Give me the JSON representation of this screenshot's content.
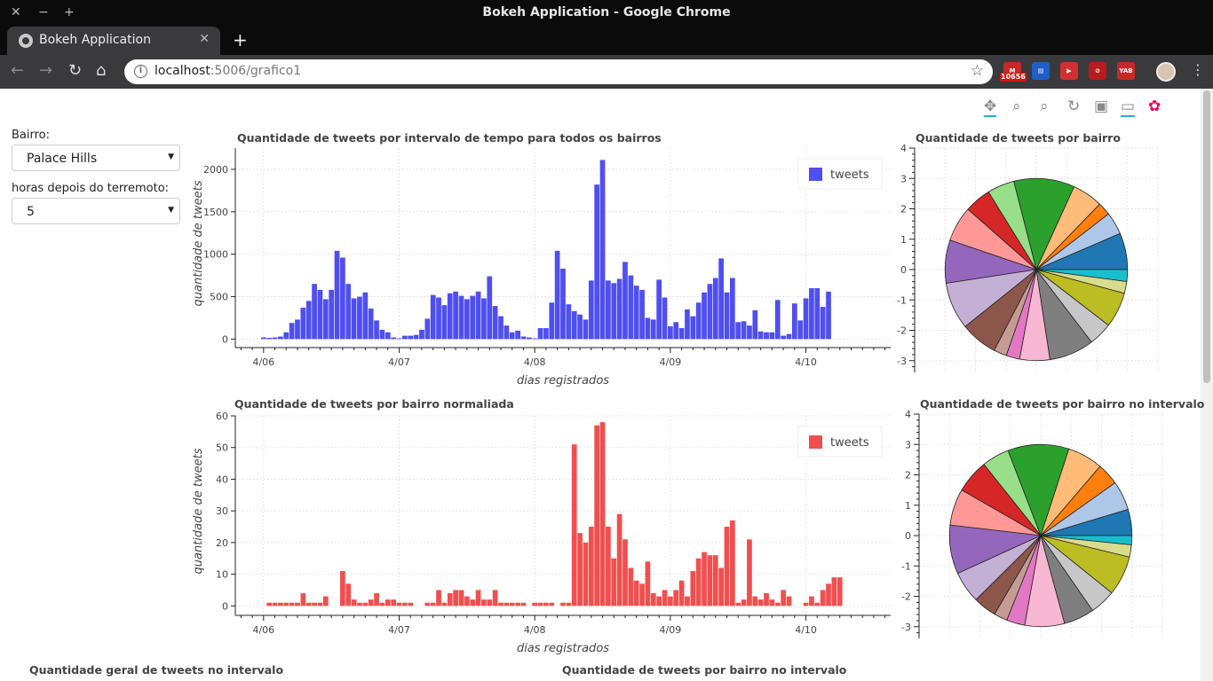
{
  "window": {
    "title": "Bokeh Application - Google Chrome",
    "controls": [
      "✕",
      "−",
      "+"
    ]
  },
  "tab": {
    "title": "Bokeh Application",
    "close": "✕",
    "new_tab": "+"
  },
  "nav": {
    "back": "←",
    "forward": "→",
    "reload": "↻",
    "home": "⌂",
    "menu": "⋮",
    "star": "☆"
  },
  "omnibox": {
    "host": "localhost",
    "rest": ":5006/grafico1"
  },
  "extensions": [
    {
      "name": "gmail-extension-icon",
      "text": "M",
      "badge": "10656",
      "color": "#c62828"
    },
    {
      "name": "calendar-extension-icon",
      "text": "▤",
      "badge": "",
      "color": "#1e5fc8"
    },
    {
      "name": "video-extension-icon",
      "text": "▶",
      "badge": "",
      "color": "#d32f2f"
    },
    {
      "name": "block-extension-icon",
      "text": "⊘",
      "badge": "",
      "color": "#b71c1c"
    },
    {
      "name": "yab-extension-icon",
      "text": "YAB",
      "badge": "",
      "color": "#c62828"
    }
  ],
  "bokeh_tools": [
    "✥",
    "⌕",
    "⌕",
    "↻",
    "▣",
    "▭",
    "✿"
  ],
  "widgets": {
    "bairro_label": "Bairro:",
    "bairro_value": "Palace Hills",
    "horas_label": "horas depois do terremoto:",
    "horas_value": "5"
  },
  "plots": {
    "p1_title": "Quantidade de tweets por intervalo de tempo para todos os bairros",
    "p2_title": "Quantidade de tweets por bairro",
    "p3_title": "Quantidade de tweets por bairro normaliada",
    "p4_title": "Quantidade de tweets por bairro no intervalo",
    "p5_title": "Quantidade geral de tweets no intervalo",
    "p6_title": "Quantidade de tweets por bairro no intervalo"
  },
  "colors": {
    "bar_blue": "#4f4ff0",
    "bar_red": "#f04f4f"
  },
  "chart_data": [
    {
      "type": "bar",
      "title": "Quantidade de tweets por intervalo de tempo para todos os bairros",
      "xlabel": "dias registrados",
      "ylabel": "quantidade de tweets",
      "x_ticks": [
        "4/06",
        "4/07",
        "4/08",
        "4/09",
        "4/10"
      ],
      "x_tick_pos": [
        0,
        24,
        48,
        72,
        96
      ],
      "xlim": [
        -5,
        111
      ],
      "ylim": [
        -100,
        2250
      ],
      "y_ticks": [
        0,
        500,
        1000,
        1500,
        2000
      ],
      "legend": "tweets",
      "color": "#4f4ff0",
      "bar_width": 1,
      "x": [
        0,
        1,
        2,
        3,
        4,
        5,
        6,
        7,
        8,
        9,
        10,
        11,
        12,
        13,
        14,
        15,
        16,
        17,
        18,
        19,
        20,
        21,
        22,
        23,
        24,
        25,
        26,
        27,
        28,
        29,
        30,
        31,
        32,
        33,
        34,
        35,
        36,
        37,
        38,
        39,
        40,
        41,
        42,
        43,
        44,
        45,
        46,
        47,
        48,
        49,
        50,
        51,
        52,
        53,
        54,
        55,
        56,
        57,
        58,
        59,
        60,
        61,
        62,
        63,
        64,
        65,
        66,
        67,
        68,
        69,
        70,
        71,
        72,
        73,
        74,
        75,
        76,
        77,
        78,
        79,
        80,
        81,
        82,
        83,
        84,
        85,
        86,
        87,
        88,
        89,
        90,
        91,
        92,
        93,
        94,
        95,
        96,
        97,
        98,
        99,
        100,
        101,
        102,
        103,
        104,
        105,
        106,
        107,
        108,
        109,
        110
      ],
      "values": [
        20,
        15,
        20,
        30,
        80,
        190,
        230,
        370,
        450,
        650,
        580,
        470,
        580,
        1040,
        960,
        650,
        480,
        500,
        550,
        360,
        220,
        110,
        80,
        20,
        10,
        40,
        40,
        50,
        110,
        240,
        520,
        490,
        400,
        540,
        560,
        510,
        470,
        510,
        560,
        480,
        740,
        390,
        270,
        160,
        80,
        100,
        30,
        20,
        10,
        130,
        130,
        430,
        1040,
        830,
        410,
        330,
        290,
        230,
        690,
        1820,
        2110,
        690,
        660,
        710,
        910,
        750,
        630,
        580,
        250,
        230,
        700,
        490,
        150,
        200,
        130,
        350,
        270,
        430,
        550,
        650,
        720,
        950,
        550,
        720,
        200,
        210,
        160,
        340,
        90,
        80,
        80,
        460,
        40,
        60,
        420,
        220,
        480,
        600,
        600,
        380,
        560,
        0,
        0,
        0,
        0,
        0,
        0,
        0,
        0,
        0,
        0
      ]
    },
    {
      "type": "pie",
      "title": "Quantidade de tweets por bairro",
      "xlim": [
        -4,
        4
      ],
      "ylim": [
        -4,
        4
      ],
      "ticks": [
        -4,
        -3,
        -2,
        -1,
        0,
        1,
        2,
        3,
        4
      ],
      "radius": 3,
      "slices": [
        6.2,
        3.8,
        2.2,
        5.2,
        10.3,
        4.6,
        4.5,
        6.0,
        7.3,
        8.0,
        6.3,
        2.2,
        2.3,
        5.1,
        7.6,
        4.0,
        6.0,
        2.0,
        2.0
      ],
      "colors": [
        "#1f77b4",
        "#aec7e8",
        "#ff7f0e",
        "#ffbb78",
        "#2ca02c",
        "#98df8a",
        "#d62728",
        "#ff9896",
        "#9467bd",
        "#c5b0d5",
        "#8c564b",
        "#c49c94",
        "#e377c2",
        "#f7b6d2",
        "#7f7f7f",
        "#c7c7c7",
        "#bcbd22",
        "#dbdb8d",
        "#17becf"
      ]
    },
    {
      "type": "bar",
      "title": "Quantidade de tweets por bairro normaliada",
      "xlabel": "dias registrados",
      "ylabel": "quantidade de tweets",
      "x_ticks": [
        "4/06",
        "4/07",
        "4/08",
        "4/09",
        "4/10"
      ],
      "x_tick_pos": [
        0,
        24,
        48,
        72,
        96
      ],
      "xlim": [
        -5,
        111
      ],
      "ylim": [
        -3,
        60
      ],
      "y_ticks": [
        0,
        10,
        20,
        30,
        40,
        50,
        60
      ],
      "legend": "tweets",
      "color": "#f04f4f",
      "bar_width": 1,
      "x": [
        1,
        2,
        3,
        4,
        5,
        6,
        7,
        8,
        9,
        10,
        11,
        12,
        13,
        14,
        15,
        16,
        17,
        18,
        19,
        20,
        21,
        22,
        23,
        24,
        25,
        26,
        29,
        30,
        31,
        32,
        33,
        34,
        35,
        36,
        37,
        38,
        39,
        40,
        41,
        42,
        43,
        44,
        45,
        46,
        47,
        48,
        49,
        50,
        51,
        52,
        53,
        54,
        55,
        56,
        57,
        58,
        59,
        60,
        61,
        62,
        63,
        64,
        65,
        66,
        67,
        68,
        69,
        70,
        71,
        72,
        73,
        74,
        75,
        76,
        77,
        78,
        79,
        80,
        81,
        82,
        83,
        84,
        85,
        86,
        87,
        88,
        89,
        90,
        91,
        92,
        93,
        94,
        95,
        96,
        97,
        98,
        99,
        100,
        101,
        102,
        103,
        104,
        105,
        106,
        107,
        108,
        109,
        110
      ],
      "values": [
        1,
        1,
        1,
        1,
        1,
        1,
        4,
        1,
        1,
        1,
        3,
        0,
        0,
        11,
        7,
        2,
        1,
        1,
        2,
        4,
        1,
        2,
        2,
        1,
        1,
        1,
        1,
        1,
        5,
        1,
        4,
        5,
        5,
        3,
        2,
        5,
        2,
        2,
        5,
        1,
        1,
        1,
        1,
        1,
        0,
        1,
        1,
        1,
        1,
        0,
        1,
        1,
        51,
        23,
        20,
        25,
        57,
        58,
        25,
        15,
        29,
        21,
        12,
        8,
        7,
        14,
        4,
        3,
        5,
        3,
        5,
        8,
        3,
        11,
        15,
        17,
        16,
        16,
        12,
        25,
        27,
        1,
        2,
        21,
        3,
        2,
        4,
        2,
        1,
        5,
        3,
        0,
        0,
        1,
        3,
        1,
        5,
        7,
        9,
        9,
        0,
        0,
        0,
        0,
        0,
        0,
        0,
        0
      ]
    },
    {
      "type": "pie",
      "title": "Quantidade de tweets por bairro no intervalo",
      "xlim": [
        -4,
        4
      ],
      "ylim": [
        -4,
        4
      ],
      "ticks": [
        -4,
        -3,
        -2,
        -1,
        0,
        1,
        2,
        3,
        4
      ],
      "radius": 3,
      "slices": [
        4.3,
        4.8,
        3.6,
        5.8,
        10.0,
        4.5,
        5.5,
        6.0,
        8.0,
        5.2,
        3.8,
        2.2,
        3.0,
        6.5,
        5.0,
        4.2,
        6.5,
        2.0,
        1.5
      ],
      "colors": [
        "#1f77b4",
        "#aec7e8",
        "#ff7f0e",
        "#ffbb78",
        "#2ca02c",
        "#98df8a",
        "#d62728",
        "#ff9896",
        "#9467bd",
        "#c5b0d5",
        "#8c564b",
        "#c49c94",
        "#e377c2",
        "#f7b6d2",
        "#7f7f7f",
        "#c7c7c7",
        "#bcbd22",
        "#dbdb8d",
        "#17becf"
      ]
    }
  ]
}
